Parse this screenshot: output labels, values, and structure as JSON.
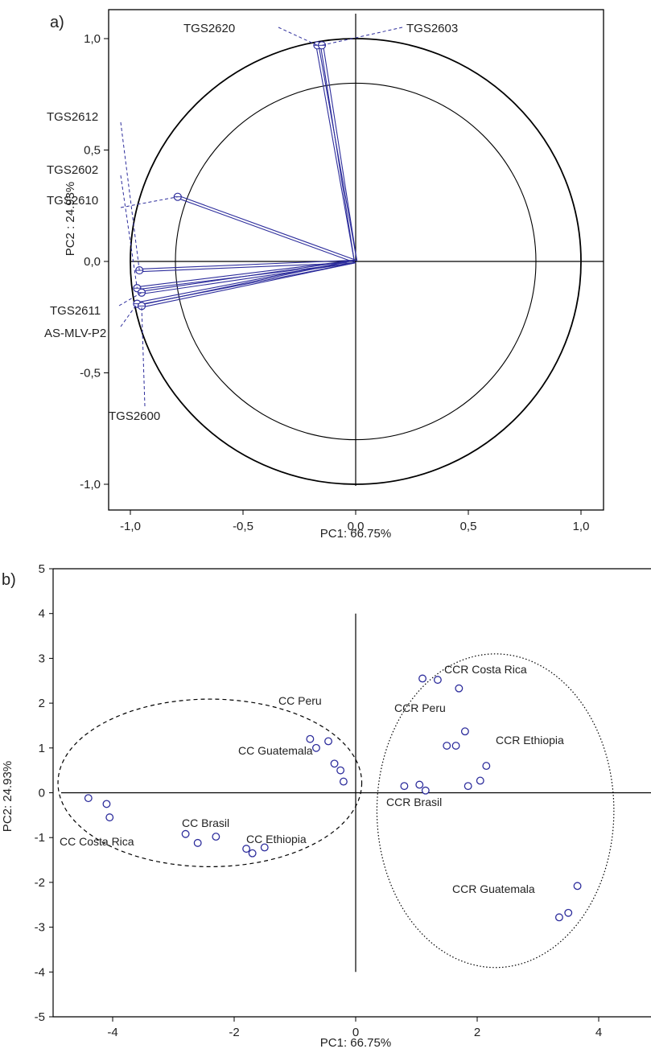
{
  "colors": {
    "vector": "#2d2d9c",
    "marker": "#2d2d9c",
    "axis": "#000000",
    "text": "#222222"
  },
  "chart_data": [
    {
      "panel": "a)",
      "type": "scatter",
      "subtype": "pca-loadings-correlation-circle",
      "xlabel": "PC1: 66.75%",
      "ylabel": "PC2 : 24.93%",
      "xlim": [
        -1.1,
        1.1
      ],
      "ylim": [
        -1.1,
        1.1
      ],
      "xticks": [
        "-1,0",
        "-0,5",
        "0,0",
        "0,5",
        "1,0"
      ],
      "yticks": [
        "1,0",
        "0,5",
        "0,0",
        "-0,5",
        "-1,0"
      ],
      "circles": [
        1.0,
        0.8
      ],
      "loadings": [
        {
          "name": "TGS2620",
          "x": -0.17,
          "y": 0.97
        },
        {
          "name": "TGS2603",
          "x": -0.15,
          "y": 0.97
        },
        {
          "name": "TGS2610",
          "x": -0.79,
          "y": 0.29
        },
        {
          "name": "TGS2612",
          "x": -0.96,
          "y": -0.04
        },
        {
          "name": "TGS2602",
          "x": -0.97,
          "y": -0.12
        },
        {
          "name": "TGS2611",
          "x": -0.95,
          "y": -0.14
        },
        {
          "name": "AS-MLV-P2",
          "x": -0.97,
          "y": -0.19
        },
        {
          "name": "TGS2600",
          "x": -0.95,
          "y": -0.2
        }
      ]
    },
    {
      "panel": "b)",
      "type": "scatter",
      "subtype": "pca-scores",
      "xlabel": "PC1: 66.75%",
      "ylabel": "PC2: 24.93%",
      "xlim": [
        -5,
        5
      ],
      "ylim": [
        -5,
        5
      ],
      "xticks": [
        "-4",
        "-2",
        "0",
        "2",
        "4"
      ],
      "yticks": [
        "5",
        "4",
        "3",
        "2",
        "1",
        "0",
        "-1",
        "-2",
        "-3",
        "-4",
        "-5"
      ],
      "groups": [
        {
          "name": "CC Peru",
          "points": [
            [
              -0.75,
              1.2
            ],
            [
              -0.65,
              1.0
            ],
            [
              -0.45,
              1.15
            ]
          ]
        },
        {
          "name": "CC Guatemala",
          "points": [
            [
              -0.35,
              0.65
            ],
            [
              -0.25,
              0.5
            ],
            [
              -0.2,
              0.25
            ]
          ]
        },
        {
          "name": "CC Costa Rica",
          "points": [
            [
              -4.4,
              -0.12
            ],
            [
              -4.1,
              -0.25
            ],
            [
              -4.05,
              -0.55
            ]
          ]
        },
        {
          "name": "CC Brasil",
          "points": [
            [
              -2.8,
              -0.92
            ],
            [
              -2.6,
              -1.12
            ],
            [
              -2.3,
              -0.98
            ]
          ]
        },
        {
          "name": "CC Ethiopia",
          "points": [
            [
              -1.8,
              -1.25
            ],
            [
              -1.7,
              -1.35
            ],
            [
              -1.5,
              -1.22
            ]
          ]
        },
        {
          "name": "CCR Costa Rica",
          "points": [
            [
              1.1,
              2.55
            ],
            [
              1.35,
              2.52
            ],
            [
              1.7,
              2.33
            ]
          ]
        },
        {
          "name": "CCR Peru",
          "points": [
            [
              1.5,
              1.05
            ],
            [
              1.65,
              1.05
            ],
            [
              1.8,
              1.37
            ]
          ]
        },
        {
          "name": "CCR Ethiopia",
          "points": [
            [
              1.85,
              0.15
            ],
            [
              2.05,
              0.27
            ],
            [
              2.15,
              0.6
            ]
          ]
        },
        {
          "name": "CCR Brasil",
          "points": [
            [
              0.8,
              0.15
            ],
            [
              1.05,
              0.18
            ],
            [
              1.15,
              0.05
            ]
          ]
        },
        {
          "name": "CCR Guatemala",
          "points": [
            [
              3.35,
              -2.78
            ],
            [
              3.5,
              -2.68
            ],
            [
              3.65,
              -2.08
            ]
          ]
        }
      ],
      "ellipses": [
        {
          "style": "dashed",
          "cx": -2.4,
          "cy": 0.22,
          "rx": 2.5,
          "ry": 1.87
        },
        {
          "style": "dotted",
          "cx": 2.3,
          "cy": -0.4,
          "rx": 1.95,
          "ry": 3.5
        }
      ]
    }
  ]
}
